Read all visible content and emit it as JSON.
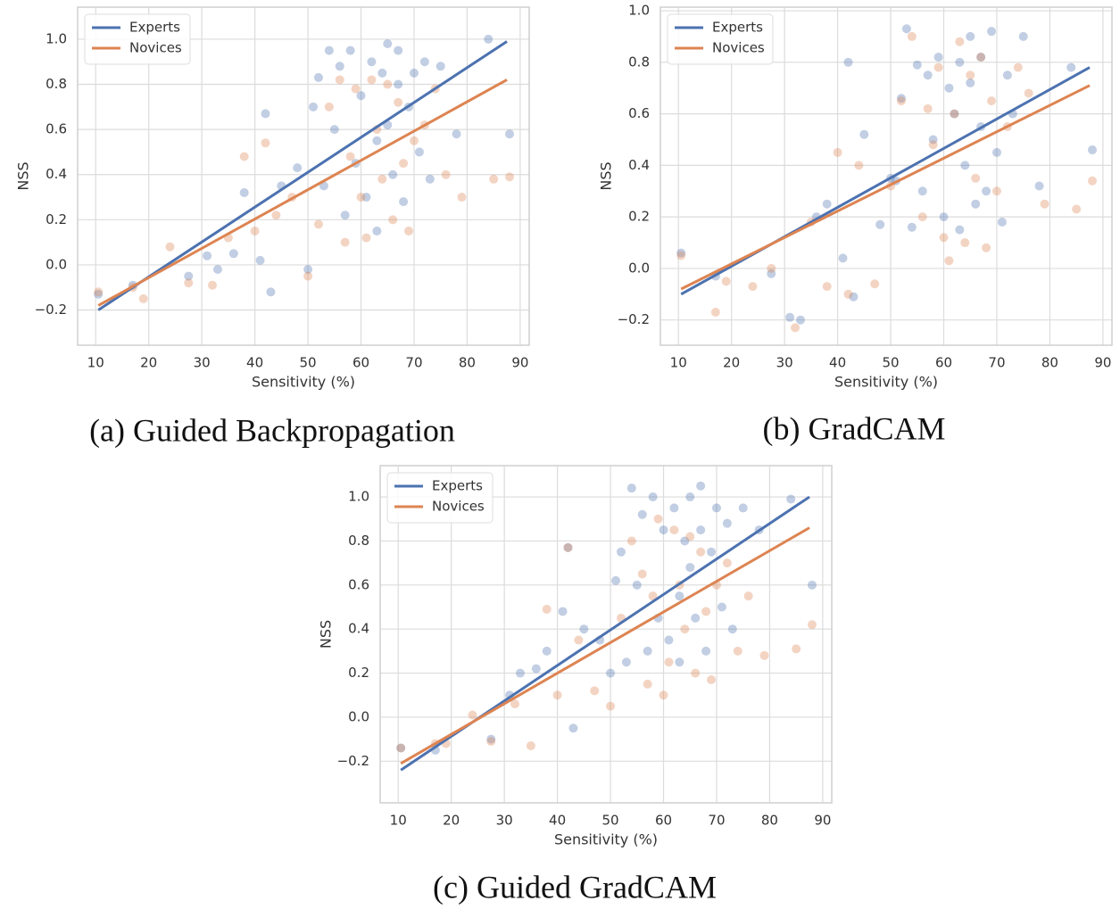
{
  "chart_data": [
    {
      "type": "scatter",
      "caption": "(a) Guided Backpropagation",
      "xlabel": "Sensitivity (%)",
      "ylabel": "NSS",
      "xlim": [
        6.6,
        91.7
      ],
      "ylim": [
        -0.356,
        1.142
      ],
      "xticks": [
        10,
        20,
        30,
        40,
        50,
        60,
        70,
        80,
        90
      ],
      "yticks": [
        {
          "value": -0.2,
          "label": "−0.2"
        },
        {
          "value": 0,
          "label": "0.0"
        },
        0.2,
        0.4,
        0.6,
        0.8,
        {
          "value": 1,
          "label": "1.0"
        }
      ],
      "grid": true,
      "legend": "upper left",
      "series": [
        {
          "name": "Experts",
          "color": "#4c72b0",
          "x": [
            10.5,
            17,
            27.5,
            31,
            33,
            36,
            38,
            41,
            42,
            43,
            45,
            48,
            50,
            51,
            52,
            53,
            54,
            55,
            56,
            57,
            58,
            59,
            60,
            61,
            62,
            63,
            63,
            64,
            65,
            65,
            66,
            67,
            67,
            68,
            69,
            70,
            71,
            72,
            73,
            75,
            78,
            84,
            88
          ],
          "values": [
            -0.13,
            -0.09,
            -0.05,
            0.04,
            -0.02,
            0.05,
            0.32,
            0.02,
            0.67,
            -0.12,
            0.35,
            0.43,
            -0.02,
            0.7,
            0.83,
            0.35,
            0.95,
            0.6,
            0.88,
            0.22,
            0.95,
            0.45,
            0.75,
            0.3,
            0.9,
            0.55,
            0.15,
            0.85,
            0.98,
            0.62,
            0.4,
            0.8,
            0.95,
            0.28,
            0.7,
            0.85,
            0.5,
            0.9,
            0.38,
            0.88,
            0.58,
            1.0,
            0.58
          ],
          "fit_x": [
            10.5,
            87.5
          ],
          "fit_y": [
            -0.2,
            0.99
          ]
        },
        {
          "name": "Novices",
          "color": "#dd8452",
          "x": [
            10.5,
            17,
            19,
            24,
            27.5,
            32,
            35,
            38,
            40,
            42,
            44,
            47,
            50,
            52,
            54,
            56,
            57,
            58,
            59,
            60,
            61,
            62,
            63,
            64,
            65,
            66,
            67,
            68,
            69,
            70,
            72,
            74,
            76,
            79,
            85,
            88
          ],
          "values": [
            -0.12,
            -0.1,
            -0.15,
            0.08,
            -0.08,
            -0.09,
            0.12,
            0.48,
            0.15,
            0.54,
            0.22,
            0.3,
            -0.05,
            0.18,
            0.7,
            0.82,
            0.1,
            0.48,
            0.78,
            0.3,
            0.12,
            0.82,
            0.6,
            0.38,
            0.8,
            0.2,
            0.72,
            0.45,
            0.15,
            0.55,
            0.62,
            0.78,
            0.4,
            0.3,
            0.38,
            0.39
          ],
          "fit_x": [
            10.5,
            87.5
          ],
          "fit_y": [
            -0.18,
            0.82
          ]
        }
      ]
    },
    {
      "type": "scatter",
      "caption": "(b) GradCAM",
      "xlabel": "Sensitivity (%)",
      "ylabel": "NSS",
      "xlim": [
        6.6,
        91.7
      ],
      "ylim": [
        -0.298,
        1.014
      ],
      "xticks": [
        10,
        20,
        30,
        40,
        50,
        60,
        70,
        80,
        90
      ],
      "yticks": [
        {
          "value": -0.2,
          "label": "−0.2"
        },
        {
          "value": 0,
          "label": "0.0"
        },
        0.2,
        0.4,
        0.6,
        0.8,
        {
          "value": 1,
          "label": "1.0"
        }
      ],
      "grid": true,
      "legend": "upper left",
      "series": [
        {
          "name": "Experts",
          "color": "#4c72b0",
          "x": [
            10.5,
            17,
            27.5,
            31,
            33,
            36,
            38,
            41,
            42,
            43,
            45,
            48,
            50,
            51,
            52,
            53,
            54,
            55,
            56,
            57,
            58,
            59,
            60,
            61,
            62,
            63,
            63,
            64,
            65,
            65,
            66,
            67,
            67,
            68,
            69,
            70,
            71,
            72,
            73,
            75,
            78,
            84,
            88
          ],
          "values": [
            0.06,
            -0.03,
            -0.02,
            -0.19,
            -0.2,
            0.2,
            0.25,
            0.04,
            0.8,
            -0.11,
            0.52,
            0.17,
            0.35,
            0.34,
            0.66,
            0.93,
            0.16,
            0.79,
            0.3,
            0.75,
            0.5,
            0.82,
            0.2,
            0.7,
            0.6,
            0.15,
            0.8,
            0.4,
            0.72,
            0.9,
            0.25,
            0.55,
            0.82,
            0.3,
            0.92,
            0.45,
            0.18,
            0.75,
            0.6,
            0.9,
            0.32,
            0.78,
            0.46
          ],
          "fit_x": [
            10.5,
            87.5
          ],
          "fit_y": [
            -0.1,
            0.78
          ]
        },
        {
          "name": "Novices",
          "color": "#dd8452",
          "x": [
            10.5,
            17,
            19,
            24,
            27.5,
            32,
            35,
            38,
            40,
            42,
            44,
            47,
            50,
            52,
            54,
            56,
            57,
            58,
            59,
            60,
            61,
            62,
            63,
            64,
            65,
            66,
            67,
            68,
            69,
            70,
            72,
            74,
            76,
            79,
            85,
            88
          ],
          "values": [
            0.05,
            -0.17,
            -0.05,
            -0.07,
            0.0,
            -0.23,
            0.18,
            -0.07,
            0.45,
            -0.1,
            0.4,
            -0.06,
            0.32,
            0.65,
            0.9,
            0.2,
            0.62,
            0.48,
            0.78,
            0.12,
            0.03,
            0.6,
            0.88,
            0.1,
            0.75,
            0.35,
            0.82,
            0.08,
            0.65,
            0.3,
            0.55,
            0.78,
            0.68,
            0.25,
            0.23,
            0.34
          ],
          "fit_x": [
            10.5,
            87.5
          ],
          "fit_y": [
            -0.08,
            0.71
          ]
        }
      ]
    },
    {
      "type": "scatter",
      "caption": "(c) Guided GradCAM",
      "xlabel": "Sensitivity (%)",
      "ylabel": "NSS",
      "xlim": [
        6.6,
        91.7
      ],
      "ylim": [
        -0.389,
        1.142
      ],
      "xticks": [
        10,
        20,
        30,
        40,
        50,
        60,
        70,
        80,
        90
      ],
      "yticks": [
        {
          "value": -0.2,
          "label": "−0.2"
        },
        {
          "value": 0,
          "label": "0.0"
        },
        0.2,
        0.4,
        0.6,
        0.8,
        {
          "value": 1,
          "label": "1.0"
        }
      ],
      "grid": true,
      "legend": "upper left",
      "series": [
        {
          "name": "Experts",
          "color": "#4c72b0",
          "x": [
            10.5,
            17,
            27.5,
            31,
            33,
            36,
            38,
            41,
            42,
            43,
            45,
            48,
            50,
            51,
            52,
            53,
            54,
            55,
            56,
            57,
            58,
            59,
            60,
            61,
            62,
            63,
            63,
            64,
            65,
            65,
            66,
            67,
            67,
            68,
            69,
            70,
            71,
            72,
            73,
            75,
            78,
            84,
            88
          ],
          "values": [
            -0.14,
            -0.15,
            -0.1,
            0.1,
            0.2,
            0.22,
            0.3,
            0.48,
            0.77,
            -0.05,
            0.4,
            0.35,
            0.2,
            0.62,
            0.75,
            0.25,
            1.04,
            0.6,
            0.92,
            0.3,
            1.0,
            0.45,
            0.85,
            0.35,
            0.95,
            0.55,
            0.25,
            0.8,
            1.0,
            0.68,
            0.45,
            0.85,
            1.05,
            0.3,
            0.75,
            0.95,
            0.5,
            0.88,
            0.4,
            0.95,
            0.85,
            0.99,
            0.6
          ],
          "fit_x": [
            10.5,
            87.5
          ],
          "fit_y": [
            -0.24,
            1.0
          ]
        },
        {
          "name": "Novices",
          "color": "#dd8452",
          "x": [
            10.5,
            17,
            19,
            24,
            27.5,
            32,
            35,
            38,
            40,
            42,
            44,
            47,
            50,
            52,
            54,
            56,
            57,
            58,
            59,
            60,
            61,
            62,
            63,
            64,
            65,
            66,
            67,
            68,
            69,
            70,
            72,
            74,
            76,
            79,
            85,
            88
          ],
          "values": [
            -0.14,
            -0.12,
            -0.12,
            0.01,
            -0.11,
            0.06,
            -0.13,
            0.49,
            0.1,
            0.77,
            0.35,
            0.12,
            0.05,
            0.45,
            0.8,
            0.65,
            0.15,
            0.55,
            0.9,
            0.1,
            0.25,
            0.85,
            0.6,
            0.4,
            0.82,
            0.2,
            0.75,
            0.48,
            0.17,
            0.6,
            0.7,
            0.3,
            0.55,
            0.28,
            0.31,
            0.42
          ],
          "fit_x": [
            10.5,
            87.5
          ],
          "fit_y": [
            -0.21,
            0.86
          ]
        }
      ]
    }
  ]
}
